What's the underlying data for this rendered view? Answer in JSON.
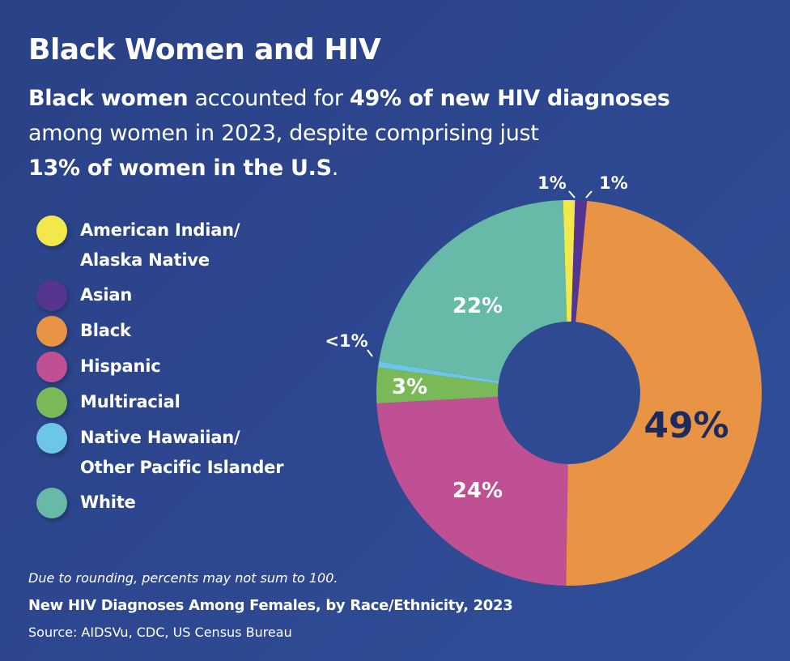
{
  "header": {
    "title": "Black Women and HIV",
    "subtitle_parts": {
      "p1_bold": "Black women",
      "p2": " accounted for ",
      "p3_bold": "49% of new HIV diagnoses",
      "p4": " among women in 2023, despite comprising just ",
      "p5_bold": "13% of women in the U.S",
      "p6": "."
    }
  },
  "colors": {
    "background": "#2d4790",
    "hole": "#2e4a92",
    "dark_label": "#1c2a5c"
  },
  "chart_data": {
    "type": "pie",
    "donut": true,
    "title": "New HIV Diagnoses Among Females, by Race/Ethnicity, 2023",
    "note": "Due to rounding, percents may not sum to 100.",
    "source": "Source: AIDSVu, CDC, US Census Bureau",
    "legend_position": "left",
    "slices": [
      {
        "name": "American Indian/ Alaska Native",
        "value": 1,
        "label": "1%",
        "color": "#f2e84b",
        "label_style": "outside-leader"
      },
      {
        "name": "Asian",
        "value": 1,
        "label": "1%",
        "color": "#553590",
        "label_style": "outside-leader"
      },
      {
        "name": "Black",
        "value": 49,
        "label": "49%",
        "color": "#e89444",
        "label_style": "inside-dark"
      },
      {
        "name": "Hispanic",
        "value": 24,
        "label": "24%",
        "color": "#c05094",
        "label_style": "inside"
      },
      {
        "name": "Multiracial",
        "value": 3,
        "label": "3%",
        "color": "#79b957",
        "label_style": "inside"
      },
      {
        "name": "Native Hawaiian/ Other Pacific Islander",
        "value": 0.5,
        "label": "<1%",
        "color": "#6ec6e6",
        "label_style": "outside-leader"
      },
      {
        "name": "White",
        "value": 22,
        "label": "22%",
        "color": "#67b9a8",
        "label_style": "inside"
      }
    ]
  },
  "legend": {
    "items": [
      {
        "lines": [
          "American Indian/",
          "Alaska Native"
        ],
        "color": "#f2e84b"
      },
      {
        "lines": [
          "Asian"
        ],
        "color": "#553590"
      },
      {
        "lines": [
          "Black"
        ],
        "color": "#e89444"
      },
      {
        "lines": [
          "Hispanic"
        ],
        "color": "#c05094"
      },
      {
        "lines": [
          "Multiracial"
        ],
        "color": "#79b957"
      },
      {
        "lines": [
          "Native Hawaiian/",
          "Other Pacific Islander"
        ],
        "color": "#6ec6e6"
      },
      {
        "lines": [
          "White"
        ],
        "color": "#67b9a8"
      }
    ]
  }
}
